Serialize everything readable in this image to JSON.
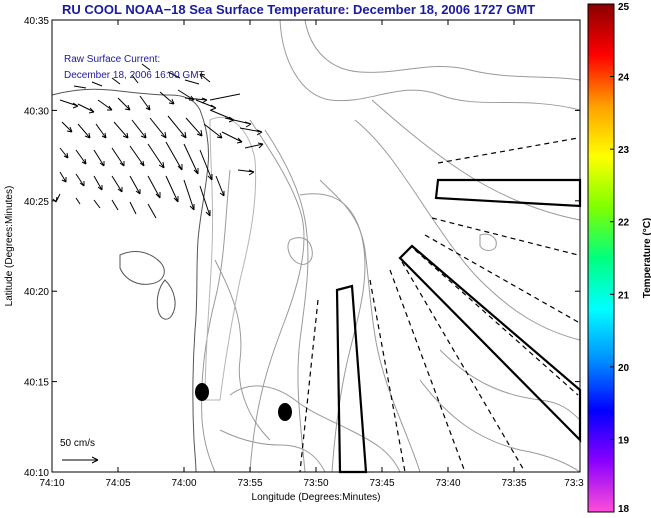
{
  "title": "RU COOL  NOAA−18  Sea Surface Temperature:  December 18, 2006 1727 GMT",
  "annotation": {
    "line1": "Raw Surface Current:",
    "line2": "December 18, 2006 16:00 GMT"
  },
  "scale_label": "50 cm/s",
  "xlabel": "Longitude (Degrees:Minutes)",
  "ylabel": "Latitude (Degrees:Minutes)",
  "x_ticks": [
    "74:10",
    "74:05",
    "74:00",
    "73:55",
    "73:50",
    "73:45",
    "73:40",
    "73:35",
    "73:3"
  ],
  "y_ticks": [
    "40:35",
    "40:30",
    "40:25",
    "40:20",
    "40:15",
    "40:10"
  ],
  "colorbar": {
    "title": "Temperature (°C)",
    "ticks": [
      "25",
      "24",
      "23",
      "22",
      "21",
      "20",
      "19",
      "18"
    ],
    "range": [
      18,
      25
    ],
    "colors": [
      "#ff4fd8",
      "#8a00ff",
      "#0000ff",
      "#0090ff",
      "#00ffff",
      "#00ff7f",
      "#7fff00",
      "#ffff00",
      "#ffa000",
      "#ff0000",
      "#8b0000"
    ]
  },
  "chart_data": {
    "type": "map",
    "xlabel": "Longitude (Degrees:Minutes)",
    "ylabel": "Latitude (Degrees:Minutes)",
    "xlim": [
      "74:10",
      "73:30"
    ],
    "ylim": [
      "40:10",
      "40:35"
    ],
    "color_scale": {
      "label": "Temperature (°C)",
      "min": 18,
      "max": 25
    },
    "markers": [
      {
        "lon": "74:00",
        "lat": "40:15"
      },
      {
        "lon": "73:54",
        "lat": "40:13"
      }
    ]
  },
  "colors": {
    "title": "#1a1a9e",
    "contours": "#9a9a9a",
    "land_outline": "#555555"
  }
}
